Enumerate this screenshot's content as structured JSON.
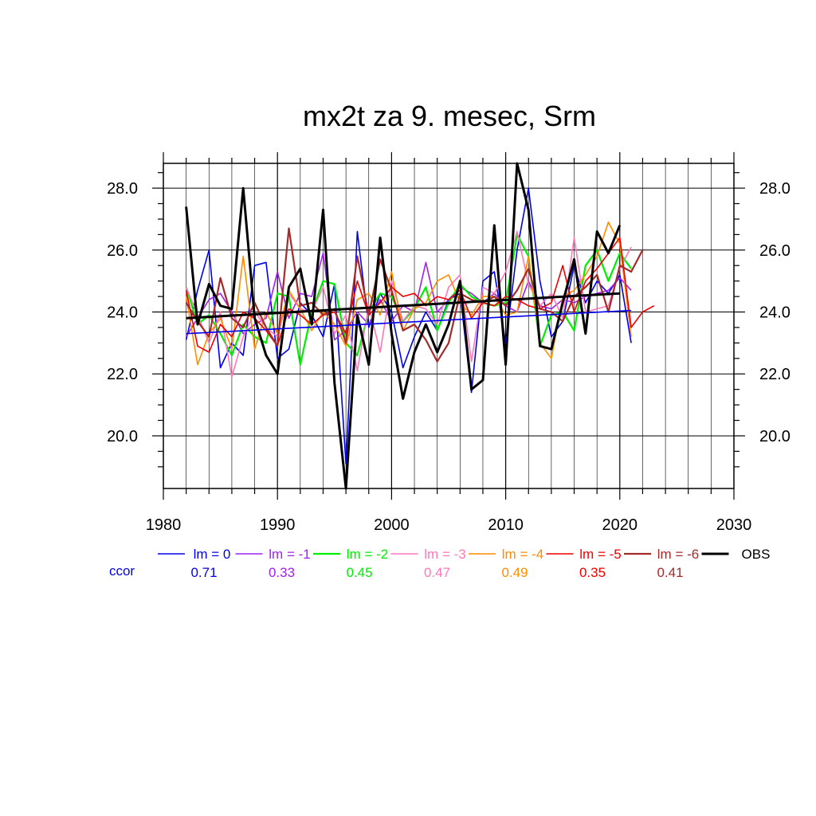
{
  "chart_data": {
    "type": "line",
    "title": "mx2t za 9. mesec, Srm",
    "xlabel": "",
    "ylabel": "",
    "xlim": [
      1980,
      2030
    ],
    "ylim": [
      18.3,
      28.8
    ],
    "x_ticks": [
      "1980",
      "1990",
      "2000",
      "2010",
      "2020",
      "2030"
    ],
    "y_ticks": [
      "20.0",
      "22.0",
      "24.0",
      "26.0",
      "28.0"
    ],
    "grid": true,
    "ccor_label": "ccor",
    "series": [
      {
        "name": "lm = 0",
        "color": "#0000ee",
        "width": 1.6,
        "ccor": "0.71",
        "x_start": 1982,
        "values": [
          23.1,
          24.7,
          26.0,
          22.2,
          23.0,
          22.6,
          25.5,
          25.6,
          22.5,
          22.8,
          24.3,
          23.9,
          23.2,
          24.9,
          19.1,
          26.6,
          23.5,
          24.6,
          24.0,
          22.2,
          23.2,
          24.0,
          23.4,
          24.4,
          24.6,
          21.4,
          25.0,
          25.3,
          23.0,
          26.0,
          28.0,
          25.0,
          23.2,
          23.7,
          25.5,
          24.3,
          25.0,
          24.6,
          25.2,
          23.0
        ]
      },
      {
        "name": "lm = -1",
        "color": "#a020f0",
        "width": 1.6,
        "ccor": "0.33",
        "x_start": 1982,
        "values": [
          23.2,
          23.8,
          24.4,
          24.6,
          24.0,
          23.3,
          23.6,
          23.8,
          25.3,
          23.8,
          24.6,
          24.5,
          25.9,
          23.1,
          23.4,
          24.0,
          23.6,
          24.4,
          23.7,
          24.2,
          24.0,
          25.6,
          24.0,
          24.4,
          24.8,
          24.6,
          24.3,
          24.6,
          24.2,
          24.0,
          25.0,
          24.2,
          24.1,
          24.4,
          24.3,
          24.5,
          24.6,
          24.7,
          25.1,
          24.7
        ]
      },
      {
        "name": "lm = -2",
        "color": "#00ee00",
        "width": 2.2,
        "ccor": "0.45",
        "x_start": 1982,
        "values": [
          24.8,
          23.6,
          23.9,
          23.3,
          22.6,
          23.6,
          23.2,
          23.0,
          24.6,
          24.5,
          22.3,
          24.0,
          25.0,
          24.9,
          23.0,
          22.6,
          24.0,
          24.6,
          24.5,
          23.7,
          24.1,
          24.8,
          23.4,
          24.3,
          24.9,
          24.5,
          24.3,
          24.2,
          24.3,
          26.5,
          25.8,
          22.9,
          23.9,
          24.0,
          23.4,
          25.5,
          26.0,
          25.0,
          25.9,
          25.4
        ]
      },
      {
        "name": "lm = -3",
        "color": "#ff77bb",
        "width": 1.6,
        "ccor": "0.47",
        "x_start": 1982,
        "values": [
          24.8,
          23.9,
          23.0,
          24.0,
          21.9,
          23.2,
          24.0,
          23.5,
          23.2,
          24.6,
          24.1,
          24.0,
          24.8,
          23.3,
          23.9,
          22.1,
          24.2,
          22.7,
          25.0,
          23.7,
          24.2,
          24.1,
          23.6,
          24.8,
          25.2,
          22.4,
          24.8,
          24.6,
          25.3,
          26.6,
          24.9,
          24.2,
          24.6,
          23.8,
          26.4,
          24.0,
          24.1,
          24.2,
          25.4,
          26.1
        ]
      },
      {
        "name": "lm = -4",
        "color": "#ff8c00",
        "width": 1.6,
        "ccor": "0.49",
        "x_start": 1982,
        "values": [
          24.5,
          22.3,
          23.3,
          23.8,
          22.8,
          25.8,
          22.8,
          24.0,
          23.3,
          24.7,
          24.1,
          23.4,
          24.0,
          23.6,
          22.9,
          24.4,
          24.6,
          23.9,
          25.3,
          23.4,
          24.1,
          24.3,
          25.0,
          25.2,
          24.3,
          23.9,
          24.5,
          24.5,
          23.9,
          24.0,
          25.8,
          23.0,
          22.5,
          24.5,
          24.7,
          25.2,
          25.8,
          26.9,
          26.2,
          23.2
        ]
      },
      {
        "name": "lm = -5",
        "color": "#ee0000",
        "width": 1.6,
        "ccor": "0.35",
        "x_start": 1982,
        "values": [
          24.7,
          22.9,
          22.7,
          23.6,
          23.2,
          24.0,
          23.8,
          23.4,
          22.9,
          24.1,
          23.9,
          23.6,
          23.9,
          24.0,
          23.3,
          25.0,
          23.9,
          24.3,
          24.8,
          24.5,
          24.6,
          24.2,
          24.5,
          24.4,
          24.7,
          23.8,
          24.3,
          24.2,
          24.5,
          24.4,
          24.2,
          24.1,
          24.3,
          25.5,
          24.0,
          25.0,
          25.4,
          25.9,
          26.4,
          23.5,
          24.0,
          24.2
        ]
      },
      {
        "name": "lm = -6",
        "color": "#a52a2a",
        "width": 2.2,
        "ccor": "0.41",
        "x_start": 1982,
        "values": [
          24.3,
          23.7,
          23.2,
          25.1,
          23.8,
          23.5,
          24.3,
          23.5,
          22.9,
          26.7,
          24.2,
          24.3,
          23.9,
          24.1,
          23.0,
          25.8,
          23.9,
          25.7,
          24.7,
          23.4,
          23.6,
          23.1,
          22.4,
          23.0,
          24.6,
          24.4,
          24.3,
          24.5,
          24.2,
          24.7,
          25.4,
          24.1,
          24.0,
          23.7,
          24.5,
          24.8,
          25.2,
          24.0,
          25.5,
          25.3,
          26.0
        ]
      },
      {
        "name": "OBS",
        "color": "#000000",
        "width": 3.0,
        "ccor": "",
        "x_start": 1982,
        "values": [
          27.4,
          23.6,
          24.9,
          24.2,
          24.1,
          28.0,
          23.8,
          22.6,
          22.0,
          24.8,
          25.4,
          23.6,
          27.3,
          21.7,
          18.3,
          23.9,
          22.3,
          26.4,
          23.3,
          21.2,
          22.7,
          23.6,
          22.7,
          23.6,
          25.0,
          21.5,
          21.8,
          26.8,
          22.3,
          28.8,
          27.3,
          22.9,
          22.8,
          24.3,
          25.7,
          23.3,
          26.6,
          25.9,
          26.8
        ]
      }
    ],
    "trends": [
      {
        "series": "lm = 0",
        "color": "#0000ee",
        "width": 1.6,
        "x": [
          1982,
          2021
        ],
        "y": [
          23.3,
          24.05
        ]
      },
      {
        "series": "OBS",
        "color": "#000000",
        "width": 3.0,
        "x": [
          1982,
          2020
        ],
        "y": [
          23.8,
          24.6
        ]
      }
    ]
  }
}
